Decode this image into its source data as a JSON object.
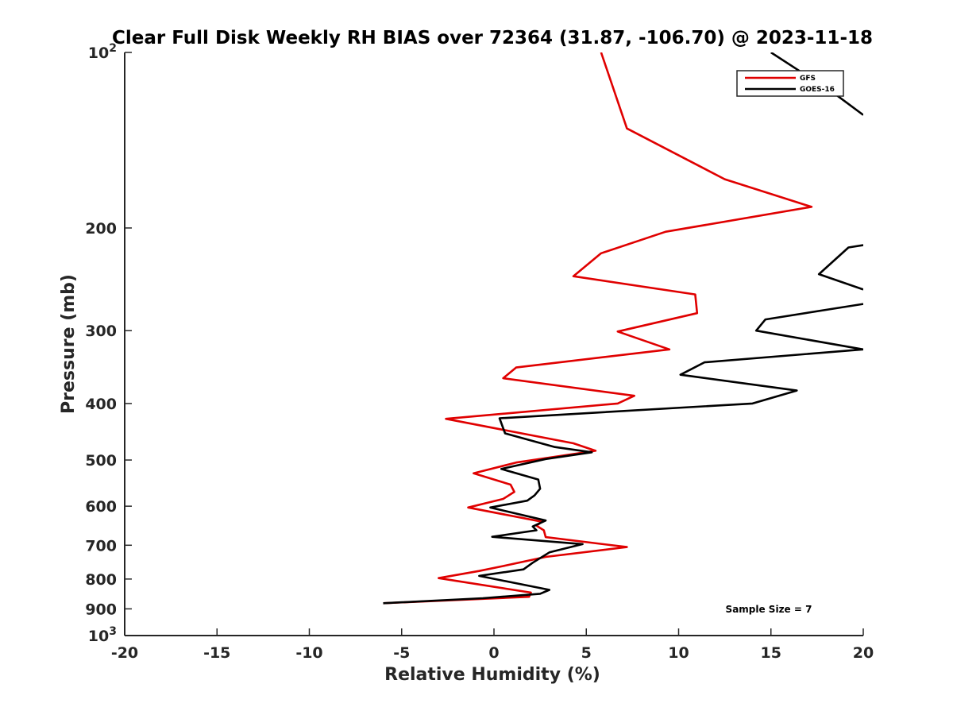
{
  "chart_data": {
    "type": "line",
    "title": "Clear Full Disk Weekly RH BIAS over 72364 (31.87, -106.70) @ 2023-11-18",
    "xlabel": "Relative Humidity (%)",
    "ylabel": "Pressure (mb)",
    "xlim": [
      -20,
      20
    ],
    "ylim": [
      100,
      1000
    ],
    "yscale": "log",
    "y_reversed": true,
    "grid": false,
    "legend_position": "top-right",
    "x_ticks": [
      "-20",
      "-15",
      "-10",
      "-5",
      "0",
      "5",
      "10",
      "15",
      "20"
    ],
    "y_ticks": [
      {
        "value": 100,
        "base": "10",
        "exp": "2"
      },
      {
        "value": 200,
        "label": "200"
      },
      {
        "value": 300,
        "label": "300"
      },
      {
        "value": 400,
        "label": "400"
      },
      {
        "value": 500,
        "label": "500"
      },
      {
        "value": 600,
        "label": "600"
      },
      {
        "value": 700,
        "label": "700"
      },
      {
        "value": 800,
        "label": "800"
      },
      {
        "value": 900,
        "label": "900"
      },
      {
        "value": 1000,
        "base": "10",
        "exp": "3"
      }
    ],
    "annotation": "Sample Size = 7",
    "series": [
      {
        "name": "GFS",
        "color": "#e00000",
        "points": [
          [
            5.8,
            100
          ],
          [
            7.2,
            135
          ],
          [
            12.5,
            165
          ],
          [
            17.2,
            184
          ],
          [
            9.3,
            203
          ],
          [
            5.8,
            221
          ],
          [
            4.3,
            242
          ],
          [
            10.9,
            260
          ],
          [
            11.0,
            280
          ],
          [
            6.7,
            301
          ],
          [
            9.5,
            323
          ],
          [
            1.2,
            347
          ],
          [
            0.5,
            362
          ],
          [
            7.6,
            388
          ],
          [
            6.7,
            400
          ],
          [
            -2.6,
            425
          ],
          [
            4.3,
            468
          ],
          [
            5.5,
            482
          ],
          [
            1.2,
            505
          ],
          [
            -1.1,
            527
          ],
          [
            0.9,
            551
          ],
          [
            1.1,
            567
          ],
          [
            0.5,
            583
          ],
          [
            -1.4,
            603
          ],
          [
            2.6,
            638
          ],
          [
            2.3,
            648
          ],
          [
            2.7,
            660
          ],
          [
            2.8,
            678
          ],
          [
            7.2,
            705
          ],
          [
            2.8,
            733
          ],
          [
            0.5,
            760
          ],
          [
            -0.8,
            775
          ],
          [
            -3.0,
            797
          ],
          [
            2.0,
            844
          ],
          [
            1.9,
            858
          ],
          [
            -6.0,
            880
          ]
        ]
      },
      {
        "name": "GOES-16",
        "color": "#000000",
        "points": [
          [
            15.0,
            100
          ],
          [
            18.5,
            118
          ],
          [
            20.0,
            128
          ],
          null,
          [
            20.0,
            214
          ],
          [
            19.2,
            216
          ],
          [
            17.6,
            240
          ],
          [
            20.0,
            255
          ],
          null,
          [
            20.0,
            270
          ],
          [
            14.7,
            287
          ],
          [
            14.2,
            300
          ],
          [
            20.0,
            323
          ],
          [
            11.4,
            340
          ],
          [
            10.1,
            357
          ],
          [
            16.4,
            380
          ],
          [
            14.0,
            400
          ],
          [
            0.3,
            424
          ],
          [
            0.6,
            450
          ],
          [
            3.3,
            475
          ],
          [
            5.3,
            485
          ],
          [
            2.8,
            498
          ],
          [
            0.4,
            518
          ],
          [
            2.4,
            540
          ],
          [
            2.5,
            560
          ],
          [
            2.2,
            575
          ],
          [
            1.8,
            587
          ],
          [
            -0.2,
            603
          ],
          [
            2.8,
            635
          ],
          [
            2.1,
            650
          ],
          [
            2.3,
            660
          ],
          [
            -0.1,
            677
          ],
          [
            4.8,
            697
          ],
          [
            3.0,
            720
          ],
          [
            2.1,
            750
          ],
          [
            1.6,
            770
          ],
          [
            -0.8,
            790
          ],
          [
            3.0,
            835
          ],
          [
            2.5,
            848
          ],
          [
            -0.6,
            863
          ],
          [
            -6.0,
            880
          ]
        ]
      }
    ]
  }
}
